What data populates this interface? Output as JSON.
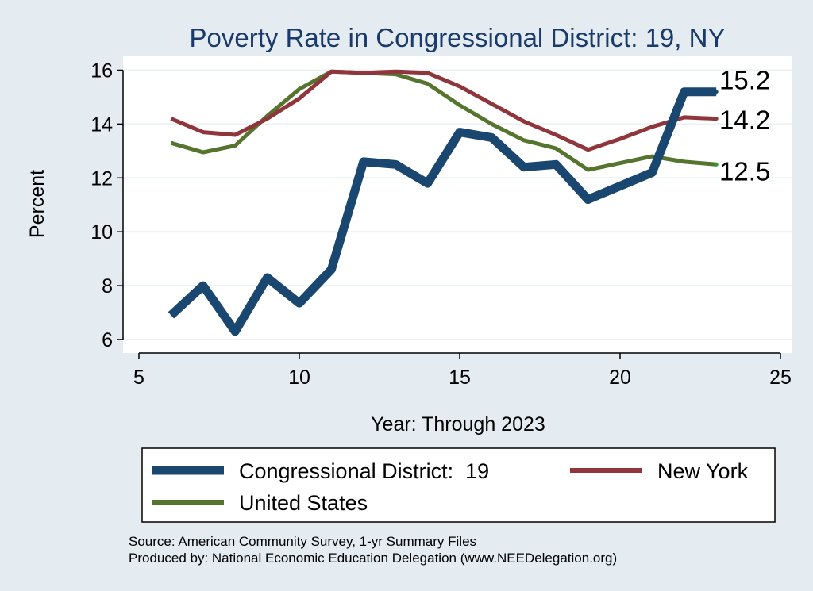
{
  "chart_data": {
    "type": "line",
    "title": "Poverty Rate in Congressional District:  19, NY",
    "xlabel": "Year: Through 2023",
    "ylabel": "Percent",
    "xlim": [
      5,
      25
    ],
    "ylim": [
      5.8,
      16.5
    ],
    "xticks": [
      5,
      10,
      15,
      20,
      25
    ],
    "yticks": [
      6,
      8,
      10,
      12,
      14,
      16
    ],
    "grid": true,
    "legend_position": "bottom",
    "series": [
      {
        "name": "Congressional District:  19",
        "color": "#1a476f",
        "x": [
          6,
          7,
          8,
          9,
          10,
          11,
          12,
          13,
          14,
          15,
          16,
          17,
          18,
          19,
          20,
          21,
          22,
          23
        ],
        "y": [
          6.9,
          8.0,
          6.3,
          8.3,
          7.35,
          8.6,
          12.6,
          12.5,
          11.8,
          13.7,
          13.5,
          12.4,
          12.5,
          11.2,
          11.7,
          12.2,
          15.2,
          15.2
        ],
        "end_label": "15.2"
      },
      {
        "name": "New York",
        "color": "#90353b",
        "x": [
          6,
          7,
          8,
          9,
          10,
          11,
          12,
          13,
          14,
          15,
          16,
          17,
          18,
          19,
          20,
          21,
          22,
          23
        ],
        "y": [
          14.2,
          13.7,
          13.6,
          14.2,
          14.95,
          15.95,
          15.9,
          15.95,
          15.9,
          15.4,
          14.75,
          14.1,
          13.6,
          13.05,
          13.45,
          13.9,
          14.25,
          14.2
        ],
        "end_label": "14.2"
      },
      {
        "name": "United States",
        "color": "#55752f",
        "x": [
          6,
          7,
          8,
          9,
          10,
          11,
          12,
          13,
          14,
          15,
          16,
          17,
          18,
          19,
          20,
          21,
          22,
          23
        ],
        "y": [
          13.3,
          12.95,
          13.2,
          14.3,
          15.3,
          15.95,
          15.9,
          15.85,
          15.5,
          14.7,
          14.0,
          13.4,
          13.1,
          12.3,
          12.55,
          12.8,
          12.6,
          12.5
        ],
        "end_label": "12.5"
      }
    ],
    "notes": [
      "Source: American Community Survey, 1-yr Summary Files",
      "Produced by: National Economic Education Delegation (www.NEEDelegation.org)"
    ]
  }
}
